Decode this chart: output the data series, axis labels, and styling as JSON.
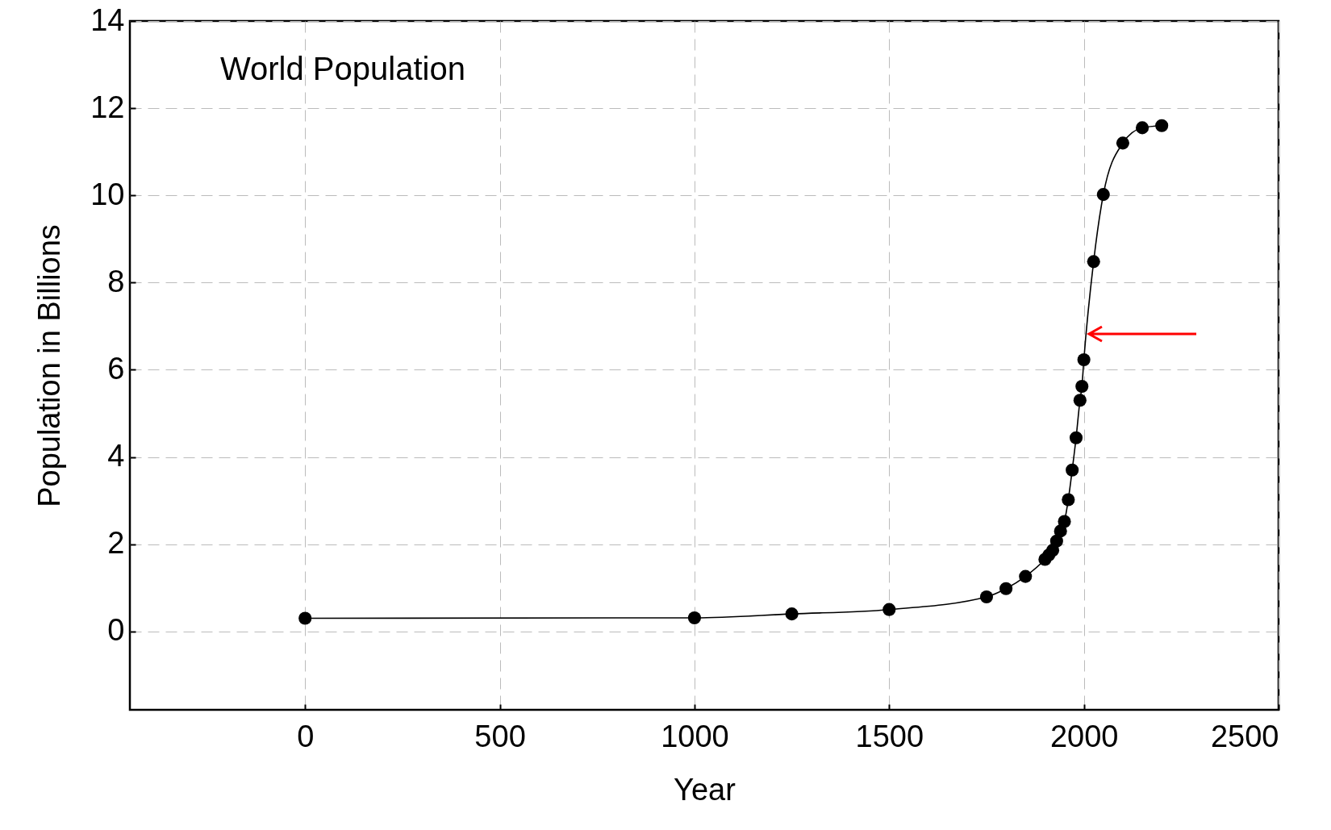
{
  "chart_data": {
    "type": "line",
    "title": "World Population",
    "xlabel": "Year",
    "ylabel": "Population in Billions",
    "x": [
      0,
      1000,
      1250,
      1500,
      1750,
      1800,
      1850,
      1900,
      1910,
      1920,
      1930,
      1940,
      1950,
      1960,
      1970,
      1980,
      1990,
      1995,
      2000,
      2025,
      2050,
      2100,
      2150,
      2200
    ],
    "series": [
      {
        "color": "#000000",
        "values": [
          0.3,
          0.31,
          0.4,
          0.5,
          0.79,
          0.98,
          1.26,
          1.65,
          1.75,
          1.86,
          2.07,
          2.3,
          2.52,
          3.02,
          3.7,
          4.44,
          5.3,
          5.62,
          6.23,
          8.48,
          10.02,
          11.2,
          11.55,
          11.6
        ]
      }
    ],
    "xlim": [
      -450,
      2500
    ],
    "xticks": [
      0,
      500,
      1000,
      1500,
      2000,
      2500
    ],
    "ylim": [
      -1.8,
      14
    ],
    "yticks": [
      0,
      2,
      4,
      6,
      8,
      10,
      12,
      14
    ],
    "grid": true,
    "marker": "circle",
    "line_style": "solid"
  }
}
